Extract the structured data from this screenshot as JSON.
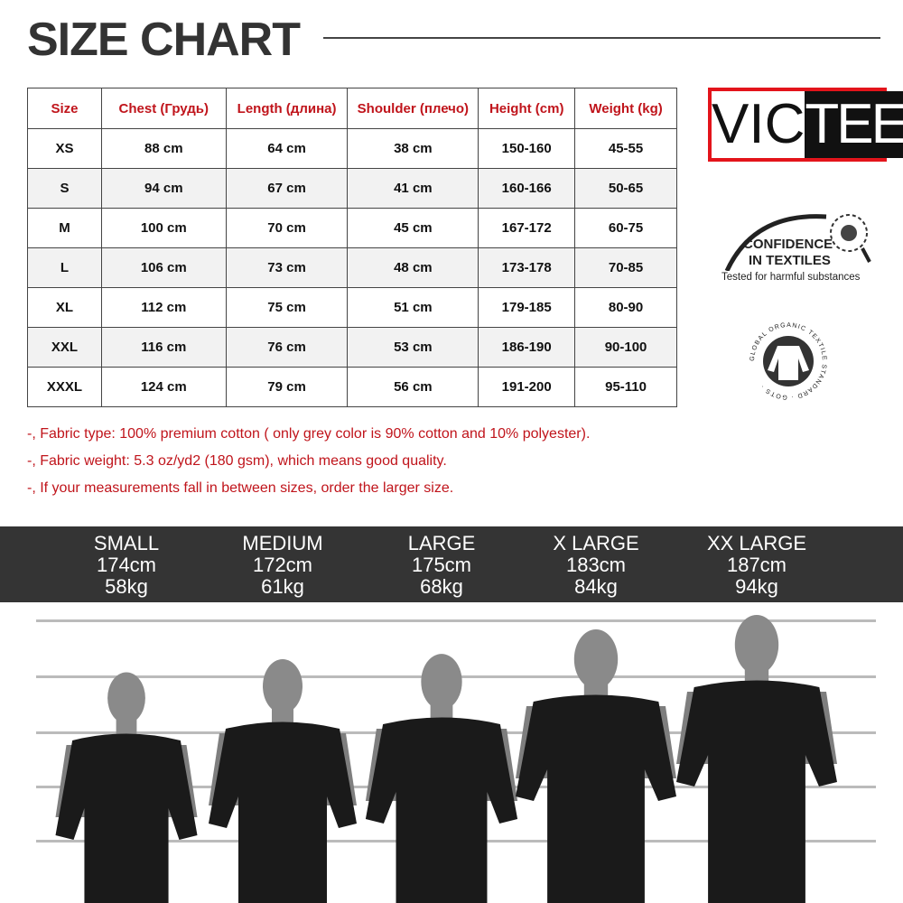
{
  "title": "SIZE CHART",
  "table": {
    "headers": [
      "Size",
      "Chest  (Грудь)",
      "Length (длина)",
      "Shoulder (плечо)",
      "Height (cm)",
      "Weight (kg)"
    ],
    "rows": [
      [
        "XS",
        "88 cm",
        "64 cm",
        "38 cm",
        "150-160",
        "45-55"
      ],
      [
        "S",
        "94 cm",
        "67 cm",
        "41 cm",
        "160-166",
        "50-65"
      ],
      [
        "M",
        "100 cm",
        "70 cm",
        "45 cm",
        "167-172",
        "60-75"
      ],
      [
        "L",
        "106 cm",
        "73 cm",
        "48 cm",
        "173-178",
        "70-85"
      ],
      [
        "XL",
        "112 cm",
        "75 cm",
        "51 cm",
        "179-185",
        "80-90"
      ],
      [
        "XXL",
        "116 cm",
        "76 cm",
        "53 cm",
        "186-190",
        "90-100"
      ],
      [
        "XXXL",
        "124 cm",
        "79 cm",
        "56 cm",
        "191-200",
        "95-110"
      ]
    ]
  },
  "notes": [
    "-, Fabric type: 100% premium cotton ( only grey color is 90% cotton and 10% polyester).",
    "-, Fabric weight: 5.3 oz/yd2 (180 gsm), which means good quality.",
    "-, If your measurements fall in between sizes, order the larger size."
  ],
  "logo": {
    "left": "VIC",
    "right": "TEES",
    "border_color": "#e3141b"
  },
  "oeko": {
    "line1": "CONFIDENCE",
    "line2": "IN TEXTILES",
    "line3": "Tested for harmful substances"
  },
  "gots": {
    "text": "GLOBAL ORGANIC TEXTILE STANDARD · GOTS ·"
  },
  "models": [
    {
      "size": "SMALL",
      "height": "174cm",
      "weight": "58kg"
    },
    {
      "size": "MEDIUM",
      "height": "172cm",
      "weight": "61kg"
    },
    {
      "size": "LARGE",
      "height": "175cm",
      "weight": "68kg"
    },
    {
      "size": "X LARGE",
      "height": "183cm",
      "weight": "84kg"
    },
    {
      "size": "XX LARGE",
      "height": "187cm",
      "weight": "94kg"
    }
  ],
  "colors": {
    "header_text": "#c0141b",
    "band": "#343434",
    "shirt": "#1a1a1a",
    "skin": "#8a8a8a"
  }
}
